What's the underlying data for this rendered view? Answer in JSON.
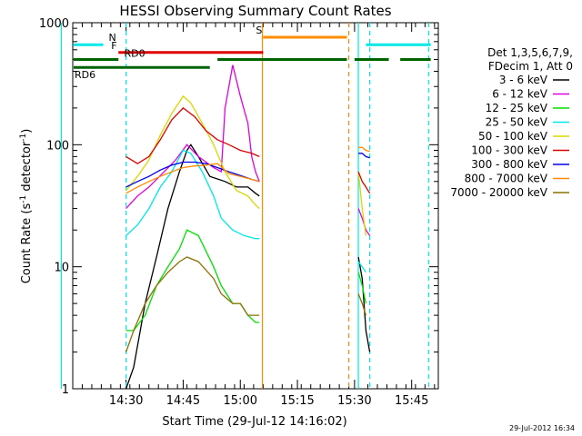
{
  "chart_data": {
    "type": "line",
    "title": "HESSI Observing Summary Count Rates",
    "xlabel": "Start Time (29-Jul-12 14:16:02)",
    "ylabel_main": "Count Rate (s",
    "ylabel_sup1": "-1",
    "ylabel_mid": " detector",
    "ylabel_sup2": "-1",
    "ylabel_end": ")",
    "y_scale": "log",
    "ylim": [
      1,
      1000
    ],
    "xlim_minutes": [
      0,
      96
    ],
    "y_ticks": [
      "1",
      "10",
      "100",
      "1000"
    ],
    "x_ticks": [
      {
        "label": "14:30",
        "minute": 14
      },
      {
        "label": "14:45",
        "minute": 29
      },
      {
        "label": "15:00",
        "minute": 44
      },
      {
        "label": "15:15",
        "minute": 59
      },
      {
        "label": "15:30",
        "minute": 74
      },
      {
        "label": "15:45",
        "minute": 89
      }
    ],
    "legend_header": [
      "Det 1,3,5,6,7,9,",
      "FDecim 1, Att 0"
    ],
    "series": [
      {
        "name": "3 - 6 keV",
        "color": "#000000",
        "points": [
          [
            14,
            1
          ],
          [
            16,
            1.5
          ],
          [
            19,
            5
          ],
          [
            22,
            12
          ],
          [
            25,
            30
          ],
          [
            28,
            60
          ],
          [
            30,
            90
          ],
          [
            31,
            100
          ],
          [
            33,
            80
          ],
          [
            36,
            55
          ],
          [
            40,
            50
          ],
          [
            43,
            45
          ],
          [
            46,
            45
          ],
          [
            48,
            40
          ],
          [
            49,
            38
          ],
          [
            69,
            null
          ],
          [
            75,
            12
          ],
          [
            76,
            8
          ],
          [
            77,
            3
          ],
          [
            78,
            2
          ]
        ]
      },
      {
        "name": "6 - 12 keV",
        "color": "#e000e0",
        "points": [
          [
            14,
            30
          ],
          [
            17,
            38
          ],
          [
            20,
            45
          ],
          [
            24,
            60
          ],
          [
            27,
            75
          ],
          [
            30,
            100
          ],
          [
            33,
            80
          ],
          [
            37,
            65
          ],
          [
            39,
            60
          ],
          [
            40,
            200
          ],
          [
            42,
            450
          ],
          [
            44,
            250
          ],
          [
            46,
            150
          ],
          [
            47,
            80
          ],
          [
            48,
            60
          ],
          [
            49,
            50
          ],
          [
            69,
            null
          ],
          [
            75,
            30
          ],
          [
            76,
            25
          ],
          [
            77,
            20
          ],
          [
            78,
            18
          ]
        ]
      },
      {
        "name": "12 - 25 keV",
        "color": "#00e000",
        "points": [
          [
            14,
            3
          ],
          [
            16,
            3
          ],
          [
            19,
            4
          ],
          [
            22,
            7
          ],
          [
            25,
            10
          ],
          [
            28,
            14
          ],
          [
            30,
            20
          ],
          [
            33,
            18
          ],
          [
            37,
            10
          ],
          [
            39,
            7
          ],
          [
            42,
            5
          ],
          [
            44,
            5
          ],
          [
            46,
            4
          ],
          [
            48,
            3.5
          ],
          [
            49,
            3.5
          ],
          [
            69,
            null
          ],
          [
            75,
            9
          ],
          [
            76,
            7
          ],
          [
            77,
            5
          ]
        ]
      },
      {
        "name": "25 - 50 keV",
        "color": "#00e8e8",
        "points": [
          [
            14,
            18
          ],
          [
            17,
            22
          ],
          [
            20,
            30
          ],
          [
            23,
            45
          ],
          [
            26,
            60
          ],
          [
            29,
            90
          ],
          [
            31,
            85
          ],
          [
            34,
            60
          ],
          [
            37,
            38
          ],
          [
            39,
            25
          ],
          [
            42,
            20
          ],
          [
            45,
            18
          ],
          [
            48,
            17
          ],
          [
            49,
            17
          ],
          [
            69,
            null
          ],
          [
            75,
            11
          ],
          [
            76,
            10
          ],
          [
            77,
            9
          ]
        ]
      },
      {
        "name": "50 - 100 keV",
        "color": "#d8d800",
        "points": [
          [
            14,
            42
          ],
          [
            17,
            55
          ],
          [
            20,
            75
          ],
          [
            23,
            120
          ],
          [
            26,
            180
          ],
          [
            29,
            250
          ],
          [
            31,
            220
          ],
          [
            34,
            150
          ],
          [
            37,
            100
          ],
          [
            40,
            60
          ],
          [
            43,
            42
          ],
          [
            46,
            38
          ],
          [
            48,
            32
          ],
          [
            49,
            30
          ],
          [
            69,
            null
          ],
          [
            75,
            60
          ],
          [
            76,
            30
          ],
          [
            77,
            18
          ]
        ]
      },
      {
        "name": "100 - 300 keV",
        "color": "#e00000",
        "points": [
          [
            14,
            80
          ],
          [
            17,
            70
          ],
          [
            20,
            80
          ],
          [
            23,
            110
          ],
          [
            26,
            160
          ],
          [
            29,
            200
          ],
          [
            32,
            170
          ],
          [
            35,
            130
          ],
          [
            38,
            110
          ],
          [
            41,
            100
          ],
          [
            44,
            90
          ],
          [
            47,
            85
          ],
          [
            49,
            80
          ],
          [
            69,
            null
          ],
          [
            75,
            60
          ],
          [
            76,
            50
          ],
          [
            77,
            45
          ],
          [
            78,
            40
          ]
        ]
      },
      {
        "name": "300 - 800 keV",
        "color": "#0000e8",
        "points": [
          [
            14,
            45
          ],
          [
            17,
            50
          ],
          [
            20,
            55
          ],
          [
            23,
            62
          ],
          [
            26,
            68
          ],
          [
            29,
            72
          ],
          [
            32,
            72
          ],
          [
            35,
            70
          ],
          [
            38,
            65
          ],
          [
            41,
            60
          ],
          [
            44,
            56
          ],
          [
            47,
            52
          ],
          [
            49,
            50
          ],
          [
            69,
            null
          ],
          [
            75,
            85
          ],
          [
            76,
            85
          ],
          [
            77,
            80
          ],
          [
            78,
            78
          ]
        ]
      },
      {
        "name": "800 - 7000 keV",
        "color": "#ff8c00",
        "points": [
          [
            14,
            40
          ],
          [
            17,
            45
          ],
          [
            20,
            50
          ],
          [
            23,
            55
          ],
          [
            26,
            60
          ],
          [
            29,
            65
          ],
          [
            32,
            67
          ],
          [
            35,
            68
          ],
          [
            38,
            70
          ],
          [
            41,
            58
          ],
          [
            44,
            55
          ],
          [
            47,
            52
          ],
          [
            49,
            50
          ],
          [
            69,
            null
          ],
          [
            75,
            95
          ],
          [
            76,
            95
          ],
          [
            77,
            90
          ],
          [
            78,
            88
          ]
        ]
      },
      {
        "name": "7000 - 20000 keV",
        "color": "#8b7000",
        "points": [
          [
            14,
            2
          ],
          [
            16,
            3
          ],
          [
            19,
            5
          ],
          [
            22,
            7
          ],
          [
            25,
            9
          ],
          [
            28,
            11
          ],
          [
            30,
            12
          ],
          [
            33,
            11
          ],
          [
            37,
            8
          ],
          [
            39,
            6
          ],
          [
            42,
            5
          ],
          [
            44,
            5
          ],
          [
            46,
            4
          ],
          [
            48,
            4
          ],
          [
            49,
            4
          ],
          [
            69,
            null
          ],
          [
            75,
            6
          ],
          [
            76,
            5
          ],
          [
            77,
            4
          ]
        ]
      }
    ],
    "flag_segments": [
      {
        "label": "N",
        "label_color": "#00c8c8",
        "color": "#00e8e8",
        "y": 660,
        "spans": [
          [
            -4,
            8
          ],
          [
            77,
            94
          ]
        ]
      },
      {
        "label": "F",
        "label_color": "#e00000",
        "color": "#e00000",
        "y": 570,
        "spans": [
          [
            12,
            50
          ]
        ]
      },
      {
        "label": "S",
        "label_color": "#ff8c00",
        "color": "#ff8c00",
        "y": 760,
        "spans": [
          [
            50,
            72
          ]
        ]
      },
      {
        "label": "RD0",
        "label_color": "#006400",
        "color": "#006400",
        "y": 500,
        "spans": [
          [
            -4,
            12
          ],
          [
            38,
            72
          ],
          [
            74,
            83
          ],
          [
            86,
            94
          ]
        ]
      },
      {
        "label": "RD6",
        "label_color": "#006400",
        "color": "#006400",
        "y": 430,
        "spans": [
          [
            -4,
            14
          ],
          [
            14,
            36
          ]
        ]
      }
    ],
    "vlines": [
      {
        "minute": -3,
        "color": "#00e8e8",
        "style": "solid"
      },
      {
        "minute": 14,
        "color": "#00e8e8",
        "style": "dashed"
      },
      {
        "minute": 49.8,
        "color": "#ff8c00",
        "style": "solid"
      },
      {
        "minute": 72.5,
        "color": "#ff8c00",
        "style": "dashed"
      },
      {
        "minute": 75,
        "color": "#00e8e8",
        "style": "solid"
      },
      {
        "minute": 78,
        "color": "#00e8e8",
        "style": "dashed"
      },
      {
        "minute": 93.5,
        "color": "#00e8e8",
        "style": "dashed"
      }
    ],
    "grid": false,
    "legend_position": "right"
  },
  "datestamp": "29-Jul-2012 16:34"
}
